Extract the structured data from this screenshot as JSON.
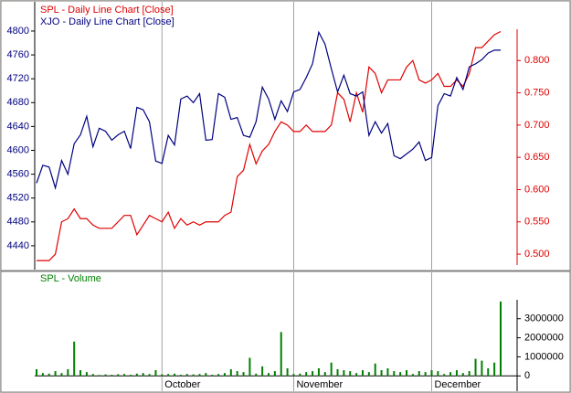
{
  "chart_data": [
    {
      "type": "line",
      "ylim": [
        4400,
        4849
      ],
      "yticks": [
        4440,
        4480,
        4520,
        4560,
        4600,
        4640,
        4680,
        4720,
        4760,
        4800
      ],
      "y2lim": [
        0.476,
        0.891
      ],
      "y2ticks": [
        {
          "value": 0.5,
          "label": "0.500"
        },
        {
          "value": 0.55,
          "label": "0.550"
        },
        {
          "value": 0.6,
          "label": "0.600"
        },
        {
          "value": 0.65,
          "label": "0.650"
        },
        {
          "value": 0.7,
          "label": "0.700"
        },
        {
          "value": 0.75,
          "label": "0.750"
        },
        {
          "value": 0.8,
          "label": "0.800"
        }
      ],
      "series": [
        {
          "name": "SPL - Daily Line Chart [Close]",
          "color": "#e00000",
          "axis": "y2",
          "values": [
            0.49,
            0.49,
            0.49,
            0.5,
            0.55,
            0.555,
            0.57,
            0.555,
            0.555,
            0.545,
            0.54,
            0.54,
            0.54,
            0.55,
            0.56,
            0.56,
            0.53,
            0.545,
            0.56,
            0.555,
            0.55,
            0.565,
            0.54,
            0.555,
            0.545,
            0.55,
            0.545,
            0.55,
            0.55,
            0.55,
            0.56,
            0.565,
            0.62,
            0.63,
            0.67,
            0.64,
            0.66,
            0.67,
            0.69,
            0.705,
            0.7,
            0.69,
            0.69,
            0.7,
            0.69,
            0.69,
            0.69,
            0.7,
            0.75,
            0.74,
            0.705,
            0.75,
            0.72,
            0.79,
            0.78,
            0.75,
            0.77,
            0.77,
            0.77,
            0.79,
            0.8,
            0.77,
            0.765,
            0.77,
            0.78,
            0.76,
            0.76,
            0.77,
            0.76,
            0.78,
            0.82,
            0.82,
            0.83,
            0.84,
            0.845
          ]
        },
        {
          "name": "XJO - Daily Line Chart [Close]",
          "color": "#000080",
          "values": [
            4545,
            4575,
            4572,
            4537,
            4583,
            4560,
            4611,
            4626,
            4657,
            4606,
            4637,
            4632,
            4617,
            4626,
            4632,
            4603,
            4672,
            4668,
            4648,
            4582,
            4578,
            4625,
            4609,
            4686,
            4691,
            4680,
            4695,
            4617,
            4618,
            4695,
            4689,
            4652,
            4655,
            4625,
            4622,
            4648,
            4706,
            4686,
            4652,
            4683,
            4665,
            4698,
            4702,
            4722,
            4745,
            4798,
            4778,
            4737,
            4698,
            4726,
            4695,
            4691,
            4698,
            4625,
            4648,
            4629,
            4645,
            4591,
            4586,
            4594,
            4602,
            4614,
            4583,
            4588,
            4675,
            4695,
            4691,
            4722,
            4702,
            4740,
            4745,
            4752,
            4763,
            4768,
            4768
          ]
        }
      ]
    },
    {
      "type": "bar",
      "categories": [
        null,
        null,
        null,
        null,
        null,
        null,
        null,
        null,
        null,
        null,
        null,
        null,
        null,
        null,
        null,
        null,
        null,
        null,
        null,
        null,
        "October",
        null,
        null,
        null,
        null,
        null,
        null,
        null,
        null,
        null,
        null,
        null,
        null,
        null,
        null,
        null,
        null,
        null,
        null,
        null,
        null,
        "November",
        null,
        null,
        null,
        null,
        null,
        null,
        null,
        null,
        null,
        null,
        null,
        null,
        null,
        null,
        null,
        null,
        null,
        null,
        null,
        null,
        null,
        "December",
        null,
        null,
        null,
        null,
        null,
        null,
        null,
        null,
        null,
        null,
        null
      ],
      "ylim": [
        -800000,
        5430000
      ],
      "yticks": [
        0,
        1000000,
        2000000,
        3000000
      ],
      "series": [
        {
          "name": "SPL - Volume",
          "color": "#008000",
          "values": [
            350000,
            150000,
            120000,
            250000,
            150000,
            350000,
            1800000,
            300000,
            200000,
            100000,
            50000,
            80000,
            60000,
            90000,
            100000,
            60000,
            120000,
            150000,
            100000,
            300000,
            80000,
            100000,
            120000,
            60000,
            100000,
            80000,
            100000,
            150000,
            60000,
            100000,
            150000,
            350000,
            250000,
            200000,
            950000,
            120000,
            500000,
            150000,
            250000,
            2300000,
            400000,
            100000,
            120000,
            200000,
            250000,
            400000,
            200000,
            700000,
            350000,
            300000,
            250000,
            150000,
            300000,
            200000,
            650000,
            300000,
            400000,
            250000,
            200000,
            300000,
            100000,
            250000,
            200000,
            300000,
            250000,
            100000,
            200000,
            300000,
            150000,
            250000,
            900000,
            800000,
            400000,
            700000,
            3900000
          ]
        }
      ]
    }
  ]
}
